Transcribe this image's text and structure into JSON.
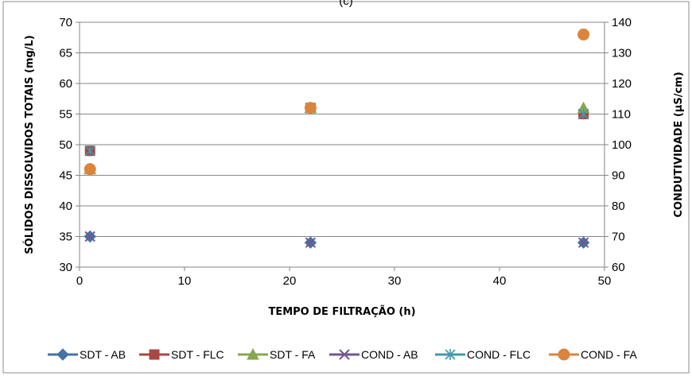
{
  "chart_data": {
    "type": "scatter",
    "title": "(c)",
    "xlabel": "TEMPO DE FILTRAÇÃO (h)",
    "ylabel": "SÓLIDOS DISSOLVIDOS TOTAIS (mg/L)",
    "y2label": "CONDUTIVIDADE (µS/cm)",
    "xlim": [
      0,
      50
    ],
    "ylim": [
      30,
      70
    ],
    "y2lim": [
      60,
      140
    ],
    "xticks": [
      0,
      10,
      20,
      30,
      40,
      50
    ],
    "yticks": [
      30,
      35,
      40,
      45,
      50,
      55,
      60,
      65,
      70
    ],
    "y2ticks": [
      60,
      70,
      80,
      90,
      100,
      110,
      120,
      130,
      140
    ],
    "grid": "horizontal",
    "legend_position": "bottom",
    "series": [
      {
        "name": "SDT - AB",
        "axis": "left",
        "marker": "diamond",
        "color": "#4572A7",
        "x": [
          1,
          22,
          48
        ],
        "y": [
          35,
          34,
          34
        ]
      },
      {
        "name": "SDT - FLC",
        "axis": "left",
        "marker": "square",
        "color": "#AA4643",
        "x": [
          1,
          22,
          48
        ],
        "y": [
          49,
          56,
          55
        ]
      },
      {
        "name": "SDT - FA",
        "axis": "left",
        "marker": "triangle",
        "color": "#89A54E",
        "x": [
          1,
          22,
          48
        ],
        "y": [
          46,
          56,
          56
        ]
      },
      {
        "name": "COND - AB",
        "axis": "right",
        "marker": "x",
        "color": "#71588F",
        "x": [
          1,
          22,
          48
        ],
        "y": [
          70,
          68,
          68
        ]
      },
      {
        "name": "COND - FLC",
        "axis": "right",
        "marker": "star",
        "color": "#4198AF",
        "x": [
          1,
          22,
          48
        ],
        "y": [
          98,
          112,
          110
        ]
      },
      {
        "name": "COND - FA",
        "axis": "right",
        "marker": "circle",
        "color": "#DB843D",
        "x": [
          1,
          22,
          48
        ],
        "y": [
          92,
          112,
          136
        ]
      }
    ]
  }
}
